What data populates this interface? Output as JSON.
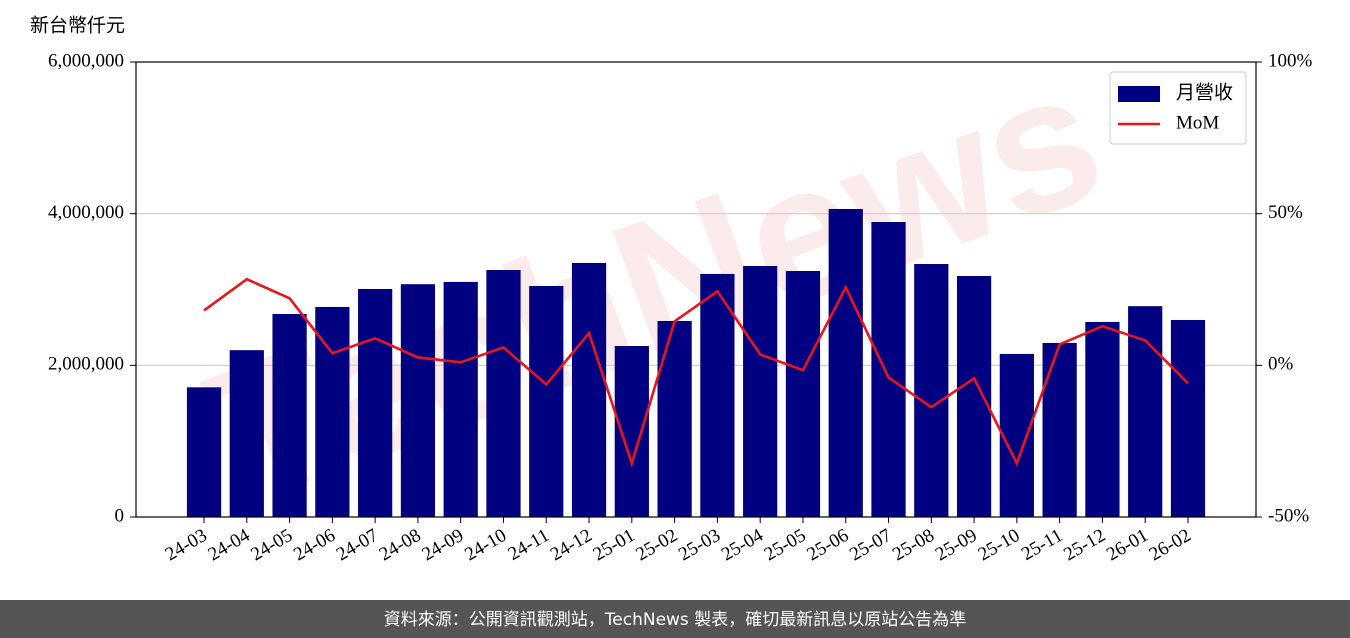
{
  "chart_data": {
    "type": "bar",
    "y_label": "新台幣仟元",
    "watermark": "TechNews",
    "footer": "資料來源：公開資訊觀測站，TechNews 製表，確切最新訊息以原站公告為準",
    "categories": [
      "24-03",
      "24-04",
      "24-05",
      "24-06",
      "24-07",
      "24-08",
      "24-09",
      "24-10",
      "24-11",
      "24-12",
      "25-01",
      "25-02",
      "25-03",
      "25-04",
      "25-05",
      "25-06",
      "25-07",
      "25-08",
      "25-09",
      "25-10",
      "25-11",
      "25-12",
      "26-01",
      "26-02"
    ],
    "series": [
      {
        "name": "月營收",
        "type": "bar",
        "color": "#000080",
        "values": [
          1710000,
          2200000,
          2677000,
          2770000,
          3007000,
          3070000,
          3100000,
          3257000,
          3046000,
          3350000,
          2255000,
          2585000,
          3205000,
          3310000,
          3244000,
          4062000,
          3890000,
          3336000,
          3178000,
          2150000,
          2295000,
          2572000,
          2780000,
          2598000
        ]
      },
      {
        "name": "MoM",
        "type": "line",
        "axis": "y2",
        "color": "#e8141e",
        "values": [
          18.1,
          28.4,
          22.1,
          4.0,
          8.9,
          2.6,
          1.0,
          5.9,
          -6.3,
          10.6,
          -32.3,
          14.5,
          24.4,
          3.6,
          -1.6,
          25.7,
          -4.0,
          -13.8,
          -4.3,
          -32.3,
          6.9,
          12.9,
          8.2,
          -5.9
        ]
      }
    ],
    "ylim": [
      0,
      6000000
    ],
    "yticks": [
      0,
      {
        "value": 2000000,
        "label": "2,000,000"
      },
      {
        "value": 4000000,
        "label": "4,000,000"
      },
      {
        "value": 6000000,
        "label": "6,000,000"
      }
    ],
    "y2lim": [
      -50,
      100
    ],
    "y2ticks": [
      {
        "value": -50,
        "label": "-50%"
      },
      {
        "value": 0,
        "label": "0%"
      },
      {
        "value": 50,
        "label": "50%"
      },
      {
        "value": 100,
        "label": "100%"
      }
    ],
    "grid": true,
    "legend": "upper right"
  }
}
